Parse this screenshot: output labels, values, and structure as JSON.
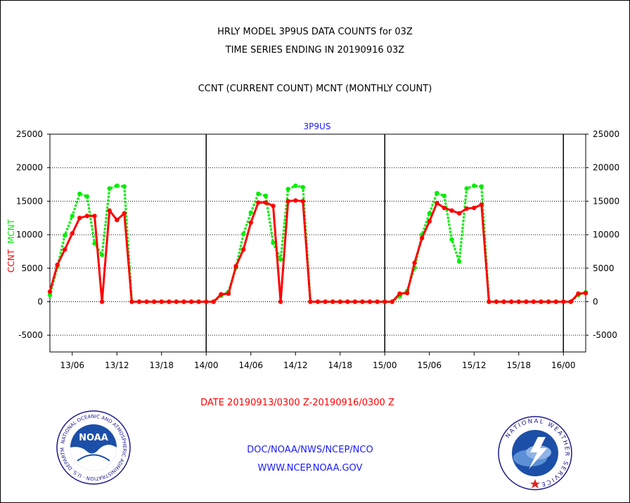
{
  "header": {
    "title_line1": "HRLY MODEL 3P9US DATA COUNTS for 03Z",
    "title_line2": "TIME SERIES ENDING IN 20190916 03Z",
    "subtitle": "CCNT (CURRENT COUNT) MCNT (MONTHLY COUNT)"
  },
  "footer": {
    "date_range": "DATE 20190913/0300 Z-20190916/0300 Z",
    "link1": "DOC/NOAA/NWS/NCEP/NCO",
    "link2": "WWW.NCEP.NOAA.GOV"
  },
  "logos": {
    "left_label": "NOAA",
    "left_ring_text": "NATIONAL OCEANIC AND ATMOSPHERIC ADMINISTRATION · U.S. DEPARTMENT OF COMMERCE",
    "right_ring_text": "NATIONAL WEATHER SERVICE"
  },
  "colors": {
    "ccnt": "#ff0000",
    "mcnt": "#00ee00",
    "panel_label": "#1a1aff",
    "gridline": "#000000"
  },
  "chart_data": {
    "type": "line",
    "title": "3P9US",
    "ylabel_parts": [
      {
        "text": "CCNT",
        "color": "#ff0000"
      },
      {
        "text": "MCNT",
        "color": "#00ee00"
      }
    ],
    "ylim": [
      -7500,
      25000
    ],
    "yticks": [
      -5000,
      0,
      5000,
      10000,
      15000,
      20000,
      25000
    ],
    "ytick_labels": [
      "-5000",
      "0",
      "5000",
      "10000",
      "15000",
      "20000",
      "25000"
    ],
    "xlim_hours": [
      3,
      75
    ],
    "xticks_hours": [
      6,
      12,
      18,
      24,
      30,
      36,
      42,
      48,
      54,
      60,
      66,
      72
    ],
    "xtick_labels": [
      "13/06",
      "13/12",
      "13/18",
      "14/00",
      "14/06",
      "14/12",
      "14/18",
      "15/00",
      "15/06",
      "15/12",
      "15/18",
      "16/00"
    ],
    "day_boundaries_hours": [
      24,
      48,
      72
    ],
    "grid": true,
    "series": [
      {
        "name": "CCNT",
        "color": "#ff0000",
        "style": "solid",
        "x": [
          3,
          4,
          5,
          6,
          7,
          8,
          9,
          10,
          11,
          12,
          13,
          14,
          15,
          16,
          17,
          18,
          19,
          20,
          21,
          22,
          23,
          24,
          25,
          26,
          27,
          28,
          29,
          30,
          31,
          32,
          33,
          34,
          35,
          36,
          37,
          38,
          39,
          40,
          41,
          42,
          43,
          44,
          45,
          46,
          47,
          48,
          49,
          50,
          51,
          52,
          53,
          54,
          55,
          56,
          57,
          58,
          59,
          60,
          61,
          62,
          63,
          64,
          65,
          66,
          67,
          68,
          69,
          70,
          71,
          72,
          73,
          74,
          75
        ],
        "values": [
          1500,
          5500,
          7800,
          10200,
          12500,
          12800,
          12800,
          0,
          13600,
          12200,
          13200,
          0,
          0,
          0,
          0,
          0,
          0,
          0,
          0,
          0,
          0,
          0,
          0,
          1100,
          1200,
          5300,
          7800,
          11800,
          14800,
          14800,
          14300,
          0,
          15000,
          15100,
          15000,
          0,
          0,
          0,
          0,
          0,
          0,
          0,
          0,
          0,
          0,
          0,
          0,
          1200,
          1300,
          5800,
          9500,
          12000,
          14700,
          14000,
          13600,
          13200,
          13900,
          14000,
          14500,
          0,
          0,
          0,
          0,
          0,
          0,
          0,
          0,
          0,
          0,
          0,
          0,
          1200,
          1300
        ]
      },
      {
        "name": "MCNT",
        "color": "#00ee00",
        "style": "dotted",
        "x": [
          3,
          4,
          5,
          6,
          7,
          8,
          9,
          10,
          11,
          12,
          13,
          14,
          15,
          16,
          17,
          18,
          19,
          20,
          21,
          22,
          23,
          24,
          25,
          26,
          27,
          28,
          29,
          30,
          31,
          32,
          33,
          34,
          35,
          36,
          37,
          38,
          39,
          40,
          41,
          42,
          43,
          44,
          45,
          46,
          47,
          48,
          49,
          50,
          51,
          52,
          53,
          54,
          55,
          56,
          57,
          58,
          59,
          60,
          61,
          62,
          63,
          64,
          65,
          66,
          67,
          68,
          69,
          70,
          71,
          72,
          73,
          74,
          75
        ],
        "values": [
          1000,
          5200,
          9900,
          12800,
          16100,
          15700,
          8700,
          7000,
          16900,
          17300,
          17200,
          0,
          0,
          0,
          0,
          0,
          0,
          0,
          0,
          0,
          0,
          0,
          0,
          900,
          1500,
          5100,
          10100,
          13300,
          16100,
          15800,
          8800,
          6300,
          16800,
          17300,
          17100,
          0,
          0,
          0,
          0,
          0,
          0,
          0,
          0,
          0,
          0,
          0,
          0,
          800,
          1600,
          5100,
          10000,
          13200,
          16200,
          15800,
          9300,
          6000,
          16900,
          17300,
          17200,
          0,
          0,
          0,
          0,
          0,
          0,
          0,
          0,
          0,
          0,
          0,
          0,
          1000,
          1400
        ]
      }
    ]
  }
}
